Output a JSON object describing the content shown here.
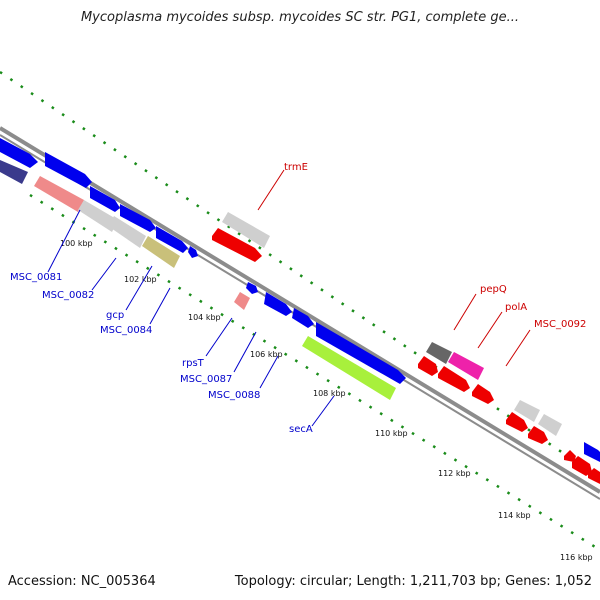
{
  "title": "Mycoplasma mycoides subsp. mycoides SC str. PG1, complete ge...",
  "footer": {
    "accession": "Accession: NC_005364",
    "summary": "Topology: circular; Length: 1,211,703 bp; Genes: 1,052"
  },
  "colors": {
    "backbone": "#8c8c8c",
    "tick": "#1a8c1a",
    "blue": "#0000ee",
    "dark_blue": "#3a3a8c",
    "red": "#ee0000",
    "salmon": "#ef8a8a",
    "light_gray": "#cfcfcf",
    "dark_gray": "#666666",
    "olive": "#c9c07a",
    "lime": "#a8f03c",
    "magenta": "#ee22aa",
    "label_blue": "#0000cc",
    "label_red": "#cc0000"
  },
  "kbp_ticks": [
    "100 kbp",
    "102 kbp",
    "104 kbp",
    "106 kbp",
    "108 kbp",
    "110 kbp",
    "112 kbp",
    "114 kbp",
    "116 kbp"
  ],
  "gene_labels": {
    "blue": [
      "MSC_0081",
      "MSC_0082",
      "gcp",
      "MSC_0084",
      "rpsT",
      "MSC_0087",
      "MSC_0088",
      "secA"
    ],
    "red": [
      "trmE",
      "pepQ",
      "polA",
      "MSC_0092"
    ]
  }
}
